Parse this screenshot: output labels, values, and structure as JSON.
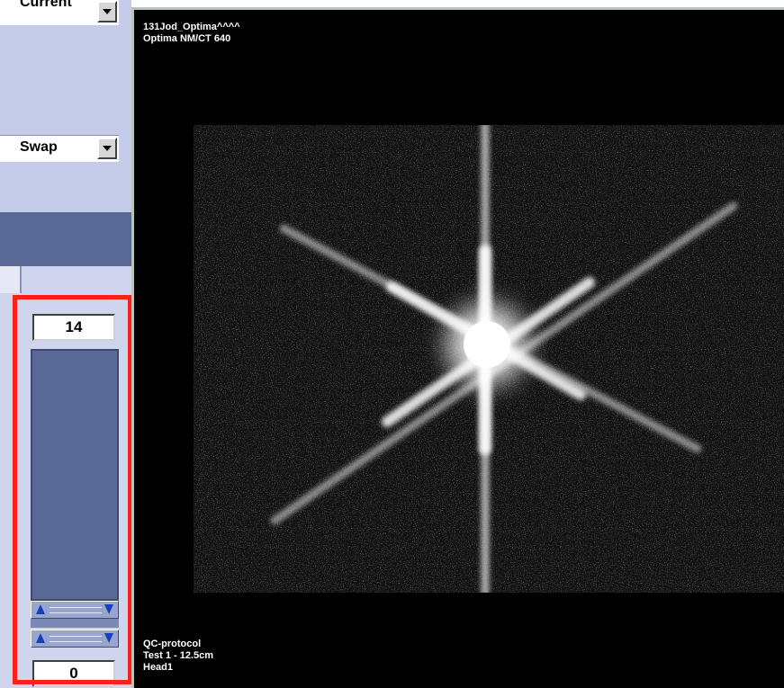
{
  "left_panel": {
    "top_select": {
      "value": "Current"
    },
    "swap_select": {
      "value": "Swap"
    },
    "slider": {
      "upper_value": "14",
      "lower_value": "0"
    }
  },
  "viewer": {
    "top_overlay": {
      "line1": "131Jod_Optima^^^^",
      "line2": "Optima NM/CT 640"
    },
    "bottom_overlay": {
      "line1": "QC-protocol",
      "line2": "Test 1 - 12.5cm",
      "line3": "Head1"
    }
  },
  "colors": {
    "panel_bg": "#c5ccea",
    "panel_dark": "#5a6896",
    "highlight": "#ff1e1e",
    "viewport_bg": "#000000",
    "overlay_text": "#ffffff"
  }
}
